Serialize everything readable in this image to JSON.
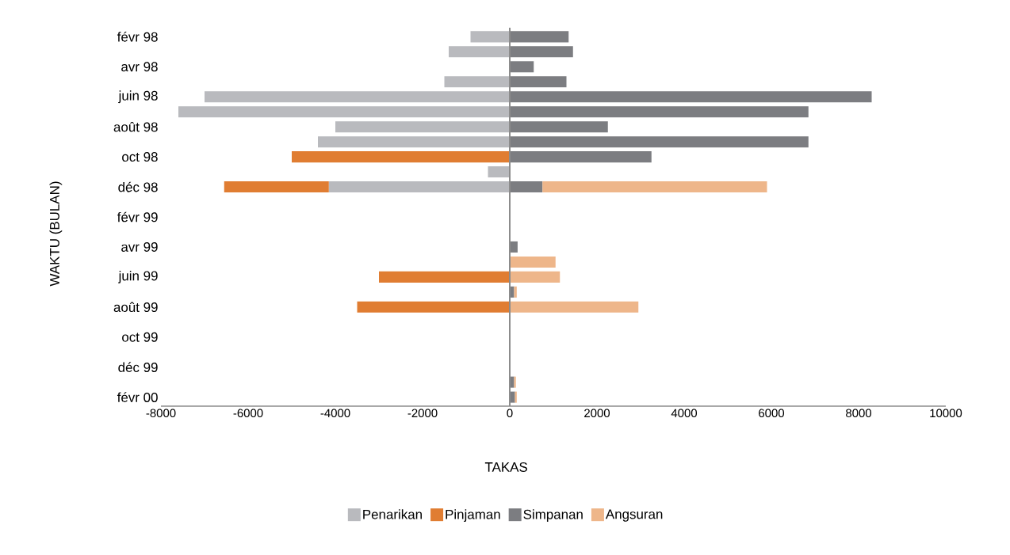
{
  "chart_data": {
    "type": "bar",
    "orientation": "horizontal",
    "stacked": true,
    "xlabel": "TAKAS",
    "ylabel": "WAKTU (BULAN)",
    "categories": [
      "févr 98",
      null,
      "avr 98",
      null,
      "juin 98",
      null,
      "août 98",
      null,
      "oct 98",
      null,
      "déc 98",
      null,
      "févr 99",
      null,
      "avr 99",
      null,
      "juin 99",
      null,
      "août 99",
      null,
      "oct 99",
      null,
      "déc 99",
      null,
      "févr 00"
    ],
    "series": [
      {
        "name": "Penarikan",
        "color": "#b9babe",
        "values": [
          -900,
          -1400,
          null,
          -1500,
          -7000,
          -7600,
          -4000,
          -4400,
          null,
          -500,
          -4150,
          null,
          null,
          null,
          null,
          null,
          null,
          null,
          null,
          null,
          null,
          null,
          null,
          null,
          null
        ]
      },
      {
        "name": "Pinjaman",
        "color": "#e07d32",
        "values": [
          null,
          null,
          null,
          null,
          null,
          null,
          null,
          null,
          -5000,
          null,
          -2400,
          null,
          null,
          null,
          null,
          null,
          -3000,
          null,
          -3500,
          null,
          null,
          null,
          null,
          null,
          null
        ]
      },
      {
        "name": "Simpanan",
        "color": "#7c7d81",
        "values": [
          1350,
          1450,
          550,
          1300,
          8300,
          6850,
          2250,
          6850,
          3250,
          null,
          750,
          null,
          null,
          null,
          180,
          null,
          null,
          100,
          null,
          null,
          null,
          null,
          null,
          100,
          120
        ]
      },
      {
        "name": "Angsuran",
        "color": "#eeb68a",
        "values": [
          null,
          null,
          null,
          null,
          null,
          null,
          null,
          null,
          null,
          null,
          5150,
          null,
          null,
          null,
          null,
          1050,
          1150,
          60,
          2950,
          null,
          null,
          null,
          null,
          40,
          40
        ]
      }
    ],
    "xlim": [
      -8000,
      10000
    ],
    "xticks": [
      -8000,
      -6000,
      -4000,
      -2000,
      0,
      2000,
      4000,
      6000,
      8000,
      10000
    ],
    "ref_lines": [
      {
        "axis": "x",
        "value": 0,
        "color": "#8c8c8c"
      }
    ],
    "grid": false,
    "legend": "bottom"
  }
}
